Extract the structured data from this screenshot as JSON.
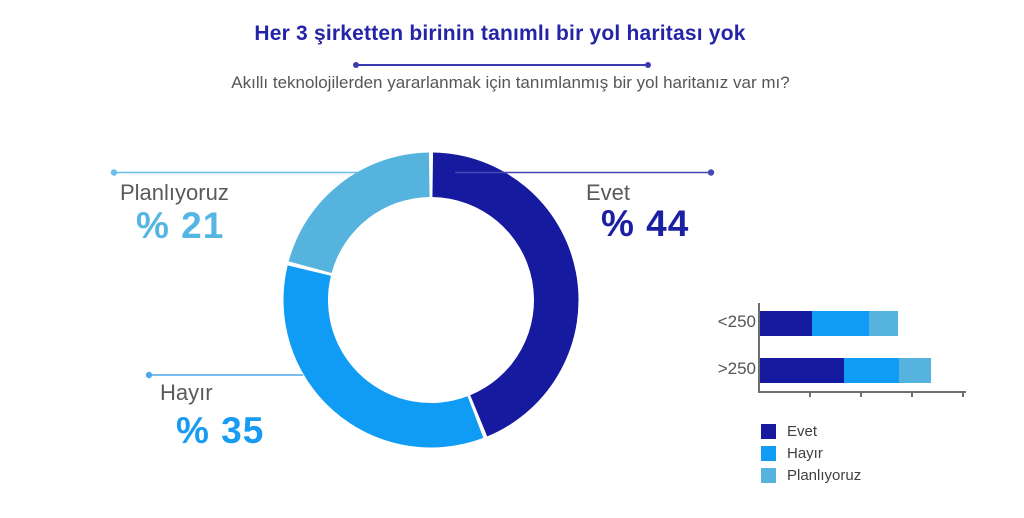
{
  "header": {
    "title": "Her 3 şirketten birinin tanımlı bir yol haritası yok",
    "subtitle": "Akıllı teknolojilerden yararlanmak için tanımlanmış bir yol haritanız var mı?"
  },
  "palette": {
    "evet": "#161A9E",
    "hayir": "#109BF5",
    "planliyoruz": "#55B3DE",
    "title_text": "#2424A8",
    "divider_line": "#3B3BB0",
    "evet_callout_line": "#4646B4",
    "hayir_callout_line": "#4FA8EC",
    "planliyoruz_callout_line": "#6CBCE6",
    "evet_value_text": "#1B1FA2",
    "hayir_value_text": "#189BF2",
    "planliyoruz_value_text": "#55B6E4",
    "gray_label_text": "#5A5A5A",
    "axis_gray": "#6E6E6E"
  },
  "chart_data": [
    {
      "type": "pie",
      "variant": "donut",
      "categories": [
        "Evet",
        "Hayır",
        "Planlıyoruz"
      ],
      "values": [
        44,
        35,
        21
      ],
      "value_labels": [
        "% 44",
        "% 35",
        "% 21"
      ],
      "colors": [
        "#161A9E",
        "#109BF5",
        "#55B3DE"
      ],
      "unit": "percent",
      "start_angle_deg": 0,
      "direction": "clockwise",
      "donut_hole_ratio": 0.7
    },
    {
      "type": "bar",
      "orientation": "horizontal",
      "stacked": true,
      "categories": [
        "<250",
        ">250"
      ],
      "series": [
        {
          "name": "Evet",
          "color": "#161A9E",
          "values": [
            25.5,
            41
          ]
        },
        {
          "name": "Hayır",
          "color": "#109BF5",
          "values": [
            28,
            27
          ]
        },
        {
          "name": "Planlıyoruz",
          "color": "#55B3DE",
          "values": [
            14,
            16
          ]
        }
      ],
      "xlim": [
        0,
        100
      ],
      "x_ticks_unlabeled": [
        25,
        50,
        75,
        100
      ],
      "grid": false,
      "legend_position": "below"
    }
  ],
  "donut_callouts": [
    {
      "name": "Evet",
      "value_text": "% 44"
    },
    {
      "name": "Hayır",
      "value_text": "% 35"
    },
    {
      "name": "Planlıyoruz",
      "value_text": "% 21"
    }
  ],
  "legend": {
    "items": [
      {
        "label": "Evet",
        "color": "#161A9E"
      },
      {
        "label": "Hayır",
        "color": "#109BF5"
      },
      {
        "label": "Planlıyoruz",
        "color": "#55B3DE"
      }
    ]
  }
}
